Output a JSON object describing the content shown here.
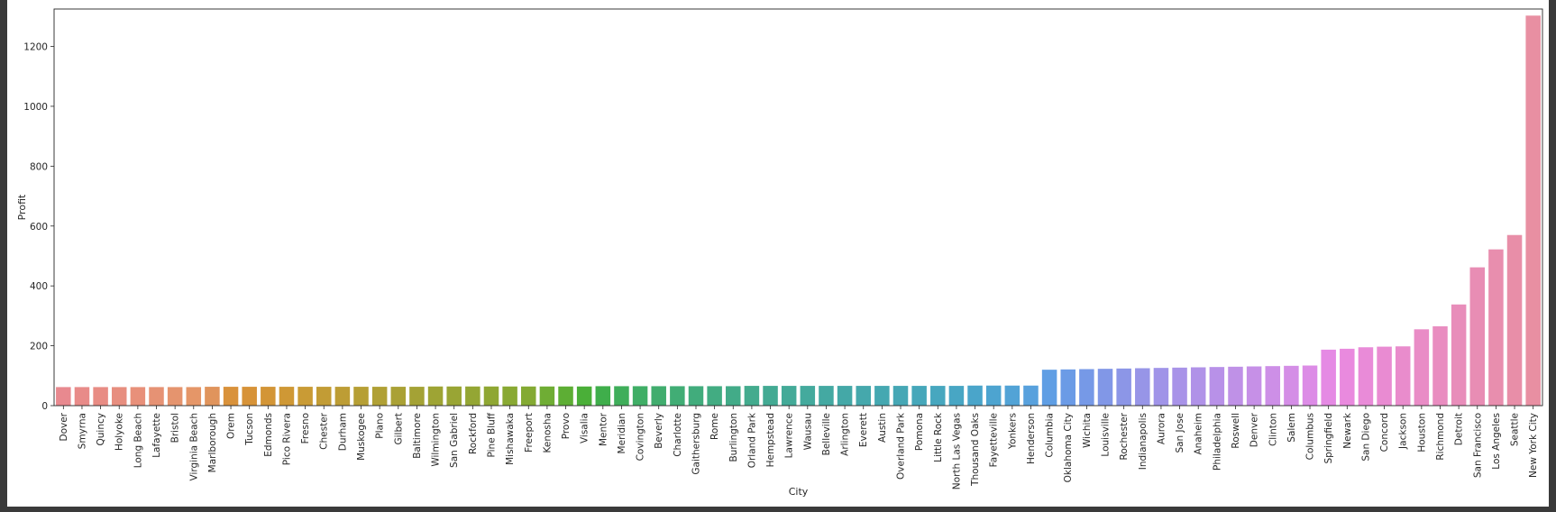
{
  "chart_data": {
    "type": "bar",
    "title": "",
    "xlabel": "City",
    "ylabel": "Profit",
    "ylim": [
      0,
      1325
    ],
    "yticks": [
      0,
      200,
      400,
      600,
      800,
      1000,
      1200
    ],
    "grid": false,
    "legend": "none",
    "categories": [
      "Dover",
      "Smyrna",
      "Quincy",
      "Holyoke",
      "Long Beach",
      "Lafayette",
      "Bristol",
      "Virginia Beach",
      "Marlborough",
      "Orem",
      "Tucson",
      "Edmonds",
      "Pico Rivera",
      "Fresno",
      "Chester",
      "Durham",
      "Muskogee",
      "Plano",
      "Gilbert",
      "Baltimore",
      "Wilmington",
      "San Gabriel",
      "Rockford",
      "Pine Bluff",
      "Mishawaka",
      "Freeport",
      "Kenosha",
      "Provo",
      "Visalia",
      "Mentor",
      "Meridian",
      "Covington",
      "Beverly",
      "Charlotte",
      "Gaithersburg",
      "Rome",
      "Burlington",
      "Orland Park",
      "Hempstead",
      "Lawrence",
      "Wausau",
      "Belleville",
      "Arlington",
      "Everett",
      "Austin",
      "Overland Park",
      "Pomona",
      "Little Rock",
      "North Las Vegas",
      "Thousand Oaks",
      "Fayetteville",
      "Yonkers",
      "Henderson",
      "Columbia",
      "Oklahoma City",
      "Wichita",
      "Louisville",
      "Rochester",
      "Indianapolis",
      "Aurora",
      "San Jose",
      "Anaheim",
      "Philadelphia",
      "Roswell",
      "Denver",
      "Clinton",
      "Salem",
      "Columbus",
      "Springfield",
      "Newark",
      "San Diego",
      "Concord",
      "Jackson",
      "Houston",
      "Richmond",
      "Detroit",
      "San Francisco",
      "Los Angeles",
      "Seattle",
      "New York City"
    ],
    "values": [
      62,
      62,
      62,
      62,
      62,
      62,
      62,
      62,
      63,
      63,
      63,
      63,
      63,
      63,
      63,
      63,
      63,
      63,
      63,
      63,
      64,
      64,
      64,
      64,
      64,
      64,
      64,
      64,
      64,
      65,
      65,
      65,
      65,
      65,
      65,
      65,
      65,
      66,
      66,
      66,
      66,
      66,
      66,
      66,
      66,
      66,
      66,
      66,
      66,
      67,
      67,
      67,
      67,
      120,
      121,
      122,
      123,
      124,
      125,
      126,
      127,
      128,
      129,
      130,
      131,
      132,
      133,
      134,
      187,
      190,
      195,
      197,
      198,
      255,
      265,
      338,
      462,
      522,
      570,
      1303
    ],
    "colors": [
      "#e8898f",
      "#e88b89",
      "#e88c84",
      "#e78e7f",
      "#e8907a",
      "#e69274",
      "#e5946e",
      "#e59668",
      "#e0945c",
      "#d9923b",
      "#d79338",
      "#d39536",
      "#cf9835",
      "#c99b35",
      "#c29c35",
      "#bd9d35",
      "#b69f35",
      "#b0a035",
      "#aaa135",
      "#a4a235",
      "#9ea434",
      "#99a534",
      "#94a634",
      "#8fa733",
      "#89a933",
      "#84aa33",
      "#6fad34",
      "#5dae34",
      "#4aaf38",
      "#3fae4b",
      "#3fae5a",
      "#40ae66",
      "#41ad6e",
      "#41ad75",
      "#41ac7c",
      "#42ac82",
      "#42ab88",
      "#43ab8e",
      "#43aa93",
      "#43aa98",
      "#44aa9d",
      "#44a9a2",
      "#44a8a7",
      "#45a8ac",
      "#45a8b1",
      "#46a7b5",
      "#46a7ba",
      "#47a7bf",
      "#48a6c4",
      "#4aa5ca",
      "#4da4d0",
      "#52a3d6",
      "#58a1dd",
      "#5f9ee4",
      "#6b9be6",
      "#7699e7",
      "#8197e7",
      "#8c96e7",
      "#9795e7",
      "#a094e8",
      "#a893e8",
      "#b092e8",
      "#b891e8",
      "#bf91e7",
      "#c690e7",
      "#cd8fe7",
      "#d48ee6",
      "#dc8ce6",
      "#e58ae4",
      "#e98ade",
      "#e98bd8",
      "#e98bd2",
      "#e98ccc",
      "#e98cc6",
      "#e98dc0",
      "#e88dba",
      "#e88db4",
      "#e88eae",
      "#e88ea8",
      "#e88fa2"
    ]
  }
}
